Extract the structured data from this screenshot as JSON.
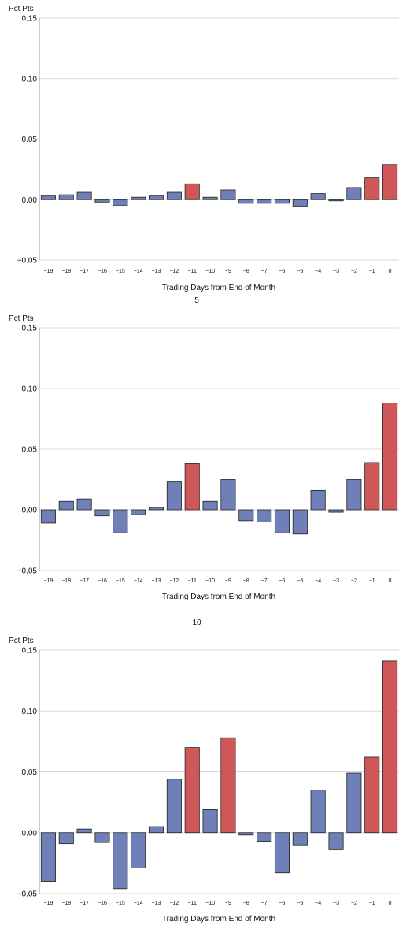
{
  "chart_data": [
    {
      "type": "bar",
      "title": "",
      "ylabel": "Pct Pts",
      "xlabel": "Trading Days from End of Month",
      "ylim": [
        -0.05,
        0.15
      ],
      "yticks": [
        "−0.05",
        "0.00",
        "0.05",
        "0.10",
        "0.15"
      ],
      "ytick_values": [
        -0.05,
        0,
        0.05,
        0.1,
        0.15
      ],
      "grid": true,
      "colors": {
        "default": "#6f7fb8",
        "highlight": "#cf5757",
        "stroke": "#222222",
        "grid": "#d9d9d9"
      },
      "categories": [
        "−19",
        "−18",
        "−17",
        "−16",
        "−15",
        "−14",
        "−13",
        "−12",
        "−11",
        "−10",
        "−9",
        "−8",
        "−7",
        "−6",
        "−5",
        "−4",
        "−3",
        "−2",
        "−1",
        "0"
      ],
      "values": [
        0.003,
        0.004,
        0.006,
        -0.002,
        -0.005,
        0.002,
        0.003,
        0.006,
        0.013,
        0.002,
        0.008,
        -0.003,
        -0.003,
        -0.003,
        -0.006,
        0.005,
        -0.001,
        0.01,
        0.018,
        0.029
      ],
      "highlight": [
        false,
        false,
        false,
        false,
        false,
        false,
        false,
        false,
        true,
        false,
        false,
        false,
        false,
        false,
        false,
        false,
        false,
        false,
        true,
        true
      ]
    },
    {
      "type": "bar",
      "title": "5",
      "ylabel": "Pct Pts",
      "xlabel": "Trading Days from End of Month",
      "ylim": [
        -0.05,
        0.15
      ],
      "yticks": [
        "−0.05",
        "0.00",
        "0.05",
        "0.10",
        "0.15"
      ],
      "ytick_values": [
        -0.05,
        0,
        0.05,
        0.1,
        0.15
      ],
      "grid": true,
      "colors": {
        "default": "#6f7fb8",
        "highlight": "#cf5757",
        "stroke": "#222222",
        "grid": "#d9d9d9"
      },
      "categories": [
        "−19",
        "−18",
        "−17",
        "−16",
        "−15",
        "−14",
        "−13",
        "−12",
        "−11",
        "−10",
        "−9",
        "−8",
        "−7",
        "−6",
        "−5",
        "−4",
        "−3",
        "−2",
        "−1",
        "0"
      ],
      "values": [
        -0.011,
        0.007,
        0.009,
        -0.005,
        -0.019,
        -0.004,
        0.002,
        0.023,
        0.038,
        0.007,
        0.025,
        -0.009,
        -0.01,
        -0.019,
        -0.02,
        0.016,
        -0.002,
        0.025,
        0.039,
        0.088
      ],
      "highlight": [
        false,
        false,
        false,
        false,
        false,
        false,
        false,
        false,
        true,
        false,
        false,
        false,
        false,
        false,
        false,
        false,
        false,
        false,
        true,
        true
      ]
    },
    {
      "type": "bar",
      "title": "10",
      "ylabel": "Pct Pts",
      "xlabel": "Trading Days from End of Month",
      "ylim": [
        -0.05,
        0.15
      ],
      "yticks": [
        "−0.05",
        "0.00",
        "0.05",
        "0.10",
        "0.15"
      ],
      "ytick_values": [
        -0.05,
        0,
        0.05,
        0.1,
        0.15
      ],
      "grid": true,
      "colors": {
        "default": "#6f7fb8",
        "highlight": "#cf5757",
        "stroke": "#222222",
        "grid": "#d9d9d9"
      },
      "categories": [
        "−19",
        "−18",
        "−17",
        "−16",
        "−15",
        "−14",
        "−13",
        "−12",
        "−11",
        "−10",
        "−9",
        "−8",
        "−7",
        "−6",
        "−5",
        "−4",
        "−3",
        "−2",
        "−1",
        "0"
      ],
      "values": [
        -0.04,
        -0.009,
        0.003,
        -0.008,
        -0.046,
        -0.029,
        0.005,
        0.044,
        0.07,
        0.019,
        0.078,
        -0.002,
        -0.007,
        -0.033,
        -0.01,
        0.035,
        -0.014,
        0.049,
        0.062,
        0.141
      ],
      "highlight": [
        false,
        false,
        false,
        false,
        false,
        false,
        false,
        false,
        true,
        false,
        true,
        false,
        false,
        false,
        false,
        false,
        false,
        false,
        true,
        true
      ]
    }
  ]
}
